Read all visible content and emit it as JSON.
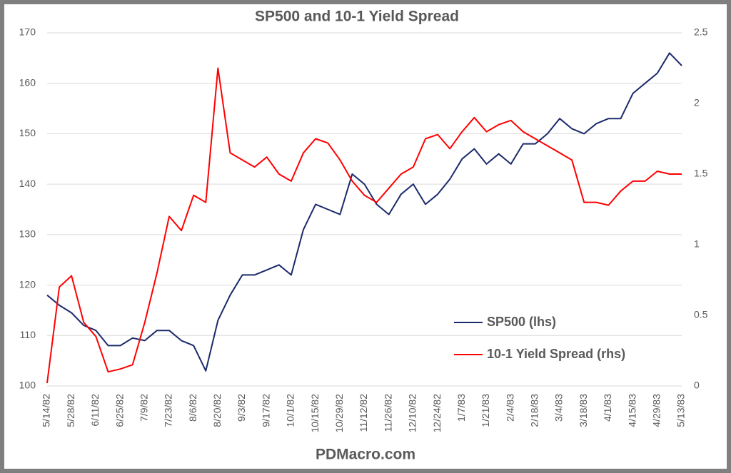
{
  "chart_data": {
    "type": "line",
    "title": "SP500 and 10-1 Yield Spread",
    "footer": "PDMacro.com",
    "categories": [
      "5/14/82",
      null,
      "5/28/82",
      null,
      "6/11/82",
      null,
      "6/25/82",
      null,
      "7/9/82",
      null,
      "7/23/82",
      null,
      "8/6/82",
      null,
      "8/20/82",
      null,
      "9/3/82",
      null,
      "9/17/82",
      null,
      "10/1/82",
      null,
      "10/15/82",
      null,
      "10/29/82",
      null,
      "11/12/82",
      null,
      "11/26/82",
      null,
      "12/10/82",
      null,
      "12/24/82",
      null,
      "1/7/83",
      null,
      "1/21/83",
      null,
      "2/4/83",
      null,
      "2/18/83",
      null,
      "3/4/83",
      null,
      "3/18/83",
      null,
      "4/1/83",
      null,
      "4/15/83",
      null,
      "4/29/83",
      null,
      "5/13/83"
    ],
    "series": [
      {
        "name": "SP500 (lhs)",
        "color": "#1b2a6b",
        "axis": "y",
        "values": [
          118,
          116,
          114.5,
          112,
          111,
          108,
          108,
          109.5,
          109,
          111,
          111,
          109,
          108,
          103,
          113,
          118,
          122,
          122,
          123,
          124,
          122,
          131,
          136,
          135,
          134,
          142,
          140,
          136,
          134,
          138,
          140,
          136,
          138,
          141,
          145,
          147,
          144,
          146,
          144,
          148,
          148,
          150,
          153,
          151,
          150,
          152,
          153,
          153,
          158,
          160,
          162,
          166,
          163.5
        ]
      },
      {
        "name": "10-1 Yield Spread (rhs)",
        "color": "#ff0000",
        "axis": "y2",
        "values": [
          0.02,
          0.7,
          0.78,
          0.45,
          0.35,
          0.1,
          0.12,
          0.15,
          0.45,
          0.8,
          1.2,
          1.1,
          1.35,
          1.3,
          2.25,
          1.65,
          1.6,
          1.55,
          1.62,
          1.5,
          1.45,
          1.65,
          1.75,
          1.72,
          1.6,
          1.45,
          1.35,
          1.3,
          1.4,
          1.5,
          1.55,
          1.75,
          1.78,
          1.68,
          1.8,
          1.9,
          1.8,
          1.85,
          1.88,
          1.8,
          1.75,
          1.7,
          1.65,
          1.6,
          1.3,
          1.3,
          1.28,
          1.38,
          1.45,
          1.45,
          1.52,
          1.5,
          1.5
        ]
      }
    ],
    "ylim": [
      100,
      170
    ],
    "yticks": [
      100,
      110,
      120,
      130,
      140,
      150,
      160,
      170
    ],
    "y2lim": [
      0,
      2.5
    ],
    "y2ticks": [
      0,
      0.5,
      1,
      1.5,
      2,
      2.5
    ],
    "grid": true
  }
}
